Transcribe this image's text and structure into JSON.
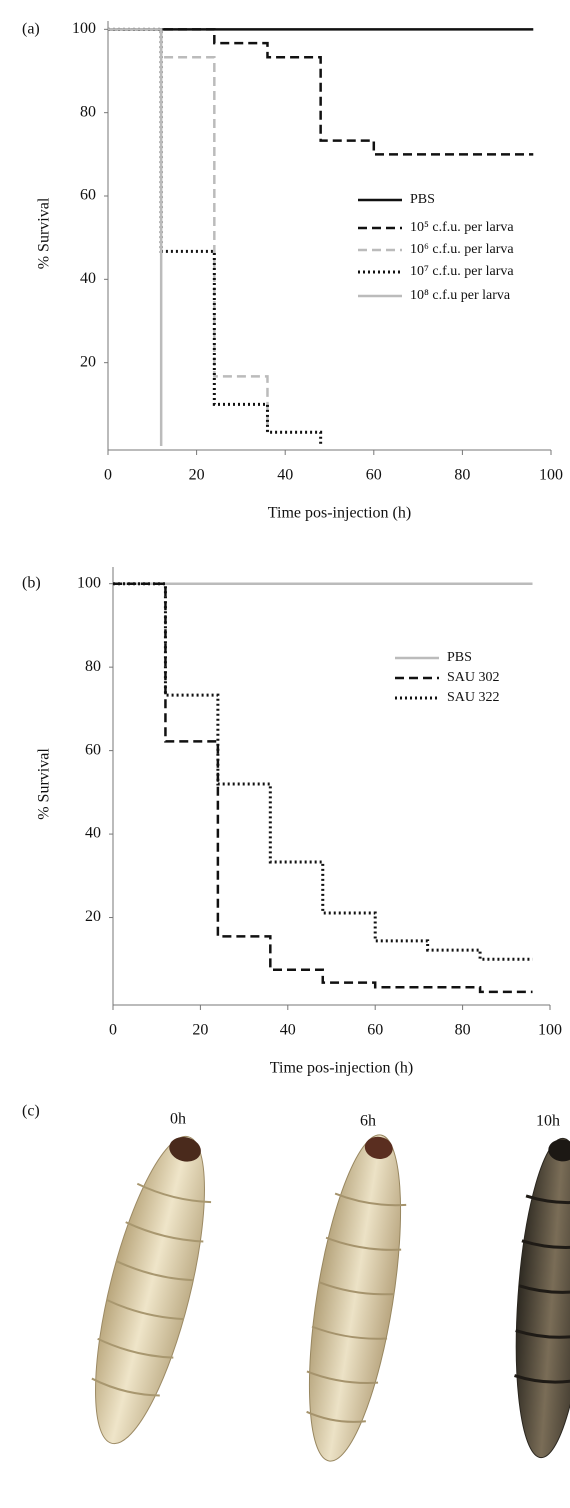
{
  "chart_data": [
    {
      "type": "step",
      "label": "(a)",
      "x_label": "Time pos-injection (h)",
      "y_label": "% Survival",
      "xlim": [
        0,
        100
      ],
      "xticks": [
        0,
        20,
        40,
        60,
        80,
        100
      ],
      "ylim": [
        0,
        102
      ],
      "yticks": [
        20,
        40,
        60,
        80,
        100
      ],
      "series": [
        {
          "name": "PBS",
          "color": "#111111",
          "dash": "solid",
          "x": [
            0,
            96
          ],
          "values": [
            100,
            100
          ]
        },
        {
          "name": "10⁵ c.f.u. per larva",
          "color": "#111111",
          "dash": "dashed",
          "x": [
            0,
            24,
            36,
            48,
            60,
            96
          ],
          "values": [
            100,
            96.7,
            93.3,
            73.3,
            70,
            70
          ]
        },
        {
          "name": "10⁶ c.f.u. per larva",
          "color": "#bbbbbb",
          "dash": "dashed",
          "x": [
            0,
            12,
            24,
            36
          ],
          "values": [
            100,
            93.3,
            16.7,
            3.3
          ]
        },
        {
          "name": "10⁷ c.f.u. per larva",
          "color": "#111111",
          "dash": "dotted",
          "x": [
            0,
            12,
            24,
            36,
            48
          ],
          "values": [
            100,
            46.7,
            10,
            3.3,
            0
          ]
        },
        {
          "name": "10⁸ c.f.u per larva",
          "color": "#bbbbbb",
          "dash": "solid",
          "x": [
            0,
            12
          ],
          "values": [
            100,
            0
          ]
        }
      ]
    },
    {
      "type": "step",
      "label": "(b)",
      "x_label": "Time pos-injection (h)",
      "y_label": "% Survival",
      "xlim": [
        0,
        100
      ],
      "xticks": [
        0,
        20,
        40,
        60,
        80,
        100
      ],
      "ylim": [
        0,
        104
      ],
      "yticks": [
        20,
        40,
        60,
        80,
        100
      ],
      "series": [
        {
          "name": "PBS",
          "color": "#bbbbbb",
          "dash": "solid",
          "x": [
            0,
            96
          ],
          "values": [
            100,
            100
          ]
        },
        {
          "name": "SAU 302",
          "color": "#111111",
          "dash": "dashed",
          "x": [
            0,
            12,
            24,
            36,
            48,
            60,
            84,
            96
          ],
          "values": [
            100,
            62.2,
            15.5,
            7.5,
            4.4,
            3.3,
            2.2,
            2.2
          ]
        },
        {
          "name": "SAU 322",
          "color": "#111111",
          "dash": "dotted",
          "x": [
            0,
            12,
            24,
            36,
            48,
            60,
            72,
            84,
            96
          ],
          "values": [
            100,
            73.3,
            52,
            33.3,
            21.1,
            14.4,
            12.2,
            10,
            10
          ]
        }
      ]
    }
  ],
  "panel_c": {
    "label": "(c)",
    "times": [
      "0h",
      "6h",
      "10h"
    ]
  }
}
